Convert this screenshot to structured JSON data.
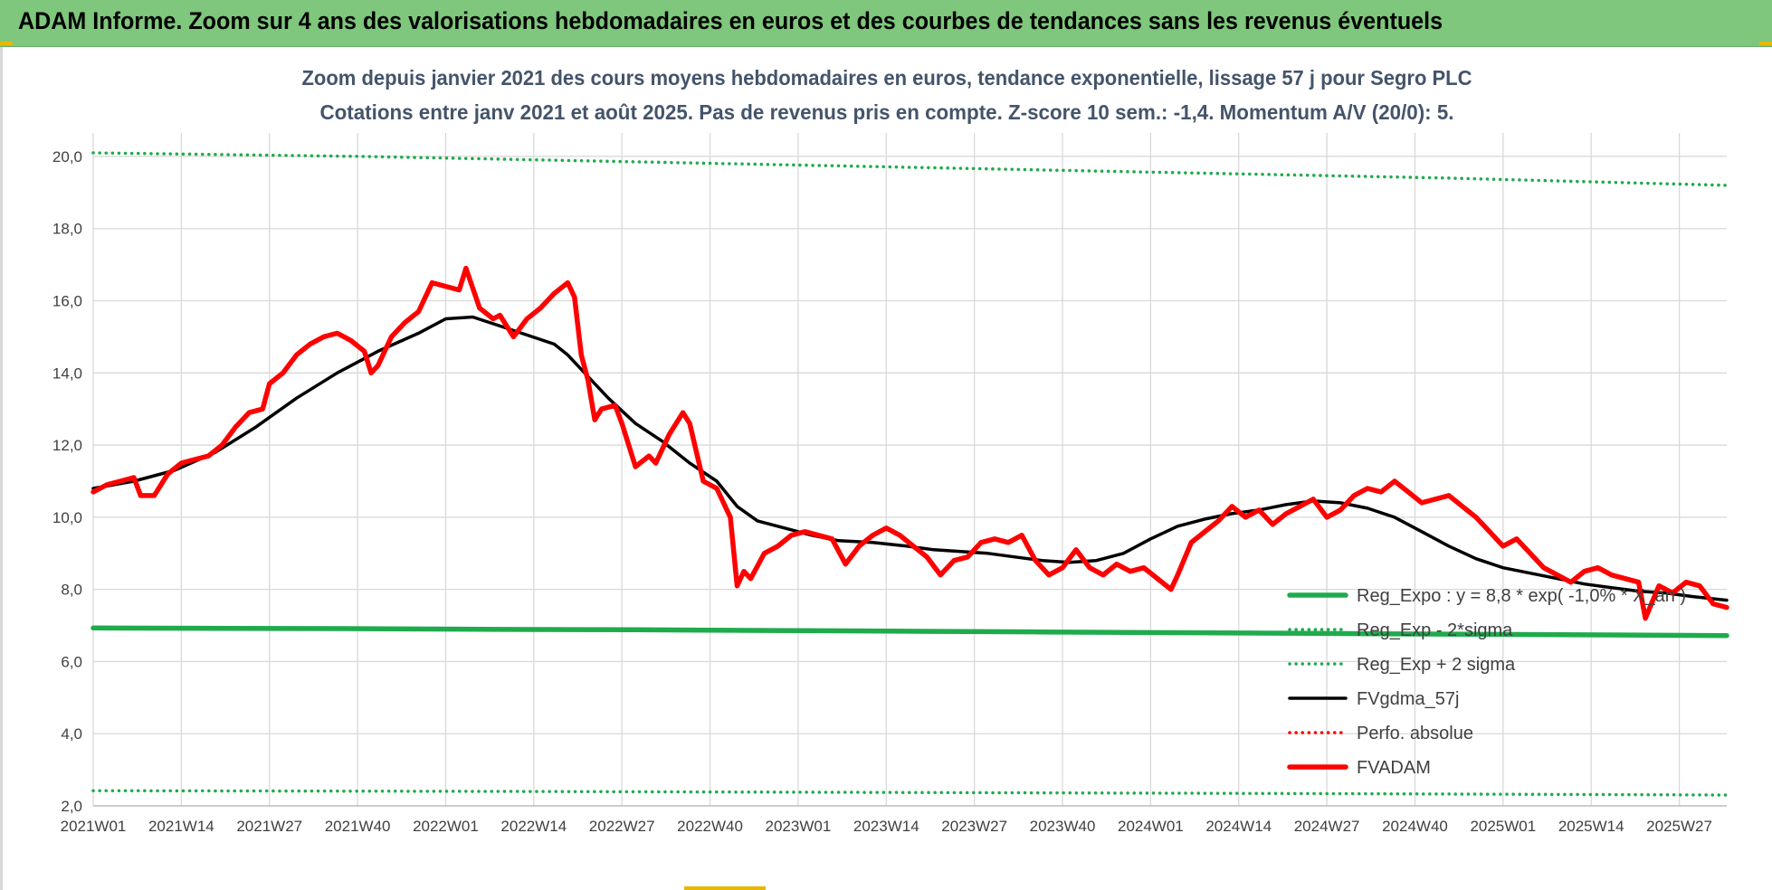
{
  "header": {
    "title": "ADAM Informe. Zoom sur 4 ans des valorisations hebdomadaires en euros et des courbes de tendances sans les revenus éventuels"
  },
  "colors": {
    "header_bg": "#7ec77c",
    "reg_expo": "#1fab4c",
    "fvgdma": "#000000",
    "fvadam": "#ff0000",
    "perfo": "#ff0000",
    "grid": "#d9d9d9",
    "title": "#44546a"
  },
  "chart_data": {
    "type": "line",
    "title": "Zoom depuis janvier 2021 des cours moyens hebdomadaires en euros, tendance exponentielle, lissage 57 j pour Segro PLC",
    "subtitle": "Cotations entre janv 2021 et août 2025.  Pas de revenus pris en compte. Z-score 10 sem.: -1,4. Momentum A/V (20/0): 5.",
    "x_tick_labels": [
      "2021W01",
      "2021W14",
      "2021W27",
      "2021W40",
      "2022W01",
      "2022W14",
      "2022W27",
      "2022W40",
      "2023W01",
      "2023W14",
      "2023W27",
      "2023W40",
      "2024W01",
      "2024W14",
      "2024W27",
      "2024W40",
      "2025W01",
      "2025W14",
      "2025W27"
    ],
    "y_tick_labels": [
      "2,0",
      "4,0",
      "6,0",
      "8,0",
      "10,0",
      "12,0",
      "14,0",
      "16,0",
      "18,0",
      "20,0"
    ],
    "ylim": [
      2,
      20.4
    ],
    "xlim_weeks": [
      0,
      241
    ],
    "grid": true,
    "legend_position": "bottom-right",
    "series": [
      {
        "name": "Reg_Expo : y = 8,8 * exp( -1,0% * X_an )",
        "style": "solid-thick",
        "color": "#1fab4c",
        "points": [
          [
            0,
            6.93
          ],
          [
            20,
            6.92
          ],
          [
            40,
            6.91
          ],
          [
            60,
            6.89
          ],
          [
            80,
            6.88
          ],
          [
            100,
            6.86
          ],
          [
            120,
            6.84
          ],
          [
            140,
            6.82
          ],
          [
            160,
            6.8
          ],
          [
            180,
            6.78
          ],
          [
            200,
            6.76
          ],
          [
            220,
            6.74
          ],
          [
            241,
            6.72
          ]
        ]
      },
      {
        "name": "Reg_Exp - 2*sigma",
        "style": "dotted",
        "color": "#1fab4c",
        "points": [
          [
            0,
            2.42
          ],
          [
            60,
            2.4
          ],
          [
            120,
            2.37
          ],
          [
            180,
            2.34
          ],
          [
            241,
            2.3
          ]
        ]
      },
      {
        "name": "Reg_Exp + 2 sigma",
        "style": "dotted",
        "color": "#1fab4c",
        "points": [
          [
            0,
            20.1
          ],
          [
            40,
            20.0
          ],
          [
            80,
            19.85
          ],
          [
            120,
            19.7
          ],
          [
            160,
            19.55
          ],
          [
            200,
            19.4
          ],
          [
            241,
            19.2
          ]
        ]
      },
      {
        "name": "FVgdma_57j",
        "style": "solid",
        "color": "#000000",
        "points": [
          [
            0,
            10.8
          ],
          [
            6,
            11.0
          ],
          [
            12,
            11.3
          ],
          [
            18,
            11.8
          ],
          [
            24,
            12.5
          ],
          [
            30,
            13.3
          ],
          [
            36,
            14.0
          ],
          [
            42,
            14.6
          ],
          [
            48,
            15.1
          ],
          [
            52,
            15.5
          ],
          [
            56,
            15.55
          ],
          [
            60,
            15.3
          ],
          [
            64,
            15.05
          ],
          [
            68,
            14.8
          ],
          [
            70,
            14.5
          ],
          [
            73,
            13.9
          ],
          [
            76,
            13.3
          ],
          [
            80,
            12.6
          ],
          [
            84,
            12.1
          ],
          [
            88,
            11.5
          ],
          [
            92,
            11.0
          ],
          [
            95,
            10.3
          ],
          [
            98,
            9.9
          ],
          [
            102,
            9.7
          ],
          [
            106,
            9.5
          ],
          [
            110,
            9.35
          ],
          [
            115,
            9.3
          ],
          [
            120,
            9.2
          ],
          [
            124,
            9.1
          ],
          [
            128,
            9.05
          ],
          [
            132,
            9.0
          ],
          [
            136,
            8.9
          ],
          [
            140,
            8.8
          ],
          [
            144,
            8.75
          ],
          [
            148,
            8.8
          ],
          [
            152,
            9.0
          ],
          [
            156,
            9.4
          ],
          [
            160,
            9.75
          ],
          [
            164,
            9.95
          ],
          [
            168,
            10.1
          ],
          [
            172,
            10.2
          ],
          [
            176,
            10.35
          ],
          [
            180,
            10.45
          ],
          [
            184,
            10.4
          ],
          [
            188,
            10.25
          ],
          [
            192,
            10.0
          ],
          [
            196,
            9.6
          ],
          [
            200,
            9.2
          ],
          [
            204,
            8.85
          ],
          [
            208,
            8.6
          ],
          [
            212,
            8.45
          ],
          [
            216,
            8.3
          ],
          [
            220,
            8.15
          ],
          [
            224,
            8.05
          ],
          [
            228,
            7.95
          ],
          [
            232,
            7.9
          ],
          [
            236,
            7.8
          ],
          [
            241,
            7.7
          ]
        ]
      },
      {
        "name": "Perfo. absolue",
        "style": "dotted",
        "color": "#ff0000",
        "points": []
      },
      {
        "name": "FVADAM",
        "style": "solid-thick",
        "color": "#ff0000",
        "points": [
          [
            0,
            10.7
          ],
          [
            2,
            10.9
          ],
          [
            4,
            11.0
          ],
          [
            6,
            11.1
          ],
          [
            7,
            10.6
          ],
          [
            9,
            10.6
          ],
          [
            11,
            11.2
          ],
          [
            13,
            11.5
          ],
          [
            15,
            11.6
          ],
          [
            17,
            11.7
          ],
          [
            19,
            12.0
          ],
          [
            21,
            12.5
          ],
          [
            23,
            12.9
          ],
          [
            25,
            13.0
          ],
          [
            26,
            13.7
          ],
          [
            28,
            14.0
          ],
          [
            30,
            14.5
          ],
          [
            32,
            14.8
          ],
          [
            34,
            15.0
          ],
          [
            36,
            15.1
          ],
          [
            38,
            14.9
          ],
          [
            40,
            14.6
          ],
          [
            41,
            14.0
          ],
          [
            42,
            14.2
          ],
          [
            44,
            15.0
          ],
          [
            46,
            15.4
          ],
          [
            48,
            15.7
          ],
          [
            50,
            16.5
          ],
          [
            52,
            16.4
          ],
          [
            54,
            16.3
          ],
          [
            55,
            16.9
          ],
          [
            57,
            15.8
          ],
          [
            59,
            15.5
          ],
          [
            60,
            15.6
          ],
          [
            62,
            15.0
          ],
          [
            64,
            15.5
          ],
          [
            66,
            15.8
          ],
          [
            68,
            16.2
          ],
          [
            70,
            16.5
          ],
          [
            71,
            16.1
          ],
          [
            72,
            14.5
          ],
          [
            73,
            13.8
          ],
          [
            74,
            12.7
          ],
          [
            75,
            13.0
          ],
          [
            77,
            13.1
          ],
          [
            78,
            12.6
          ],
          [
            80,
            11.4
          ],
          [
            82,
            11.7
          ],
          [
            83,
            11.5
          ],
          [
            85,
            12.3
          ],
          [
            87,
            12.9
          ],
          [
            88,
            12.6
          ],
          [
            90,
            11.0
          ],
          [
            92,
            10.8
          ],
          [
            94,
            10.0
          ],
          [
            95,
            8.1
          ],
          [
            96,
            8.5
          ],
          [
            97,
            8.3
          ],
          [
            99,
            9.0
          ],
          [
            101,
            9.2
          ],
          [
            103,
            9.5
          ],
          [
            105,
            9.6
          ],
          [
            107,
            9.5
          ],
          [
            109,
            9.4
          ],
          [
            111,
            8.7
          ],
          [
            113,
            9.2
          ],
          [
            115,
            9.5
          ],
          [
            117,
            9.7
          ],
          [
            119,
            9.5
          ],
          [
            121,
            9.2
          ],
          [
            123,
            8.9
          ],
          [
            125,
            8.4
          ],
          [
            127,
            8.8
          ],
          [
            129,
            8.9
          ],
          [
            131,
            9.3
          ],
          [
            133,
            9.4
          ],
          [
            135,
            9.3
          ],
          [
            137,
            9.5
          ],
          [
            139,
            8.8
          ],
          [
            141,
            8.4
          ],
          [
            143,
            8.6
          ],
          [
            145,
            9.1
          ],
          [
            147,
            8.6
          ],
          [
            149,
            8.4
          ],
          [
            151,
            8.7
          ],
          [
            153,
            8.5
          ],
          [
            155,
            8.6
          ],
          [
            157,
            8.3
          ],
          [
            159,
            8.0
          ],
          [
            160,
            8.4
          ],
          [
            162,
            9.3
          ],
          [
            164,
            9.6
          ],
          [
            166,
            9.9
          ],
          [
            168,
            10.3
          ],
          [
            170,
            10.0
          ],
          [
            172,
            10.2
          ],
          [
            174,
            9.8
          ],
          [
            176,
            10.1
          ],
          [
            178,
            10.3
          ],
          [
            180,
            10.5
          ],
          [
            182,
            10.0
          ],
          [
            184,
            10.2
          ],
          [
            186,
            10.6
          ],
          [
            188,
            10.8
          ],
          [
            190,
            10.7
          ],
          [
            192,
            11.0
          ],
          [
            194,
            10.7
          ],
          [
            196,
            10.4
          ],
          [
            198,
            10.5
          ],
          [
            200,
            10.6
          ],
          [
            202,
            10.3
          ],
          [
            204,
            10.0
          ],
          [
            206,
            9.6
          ],
          [
            208,
            9.2
          ],
          [
            210,
            9.4
          ],
          [
            212,
            9.0
          ],
          [
            214,
            8.6
          ],
          [
            216,
            8.4
          ],
          [
            218,
            8.2
          ],
          [
            220,
            8.5
          ],
          [
            222,
            8.6
          ],
          [
            224,
            8.4
          ],
          [
            226,
            8.3
          ],
          [
            228,
            8.2
          ],
          [
            229,
            7.2
          ],
          [
            231,
            8.1
          ],
          [
            233,
            7.9
          ],
          [
            235,
            8.2
          ],
          [
            237,
            8.1
          ],
          [
            239,
            7.6
          ],
          [
            241,
            7.5
          ]
        ]
      }
    ]
  }
}
